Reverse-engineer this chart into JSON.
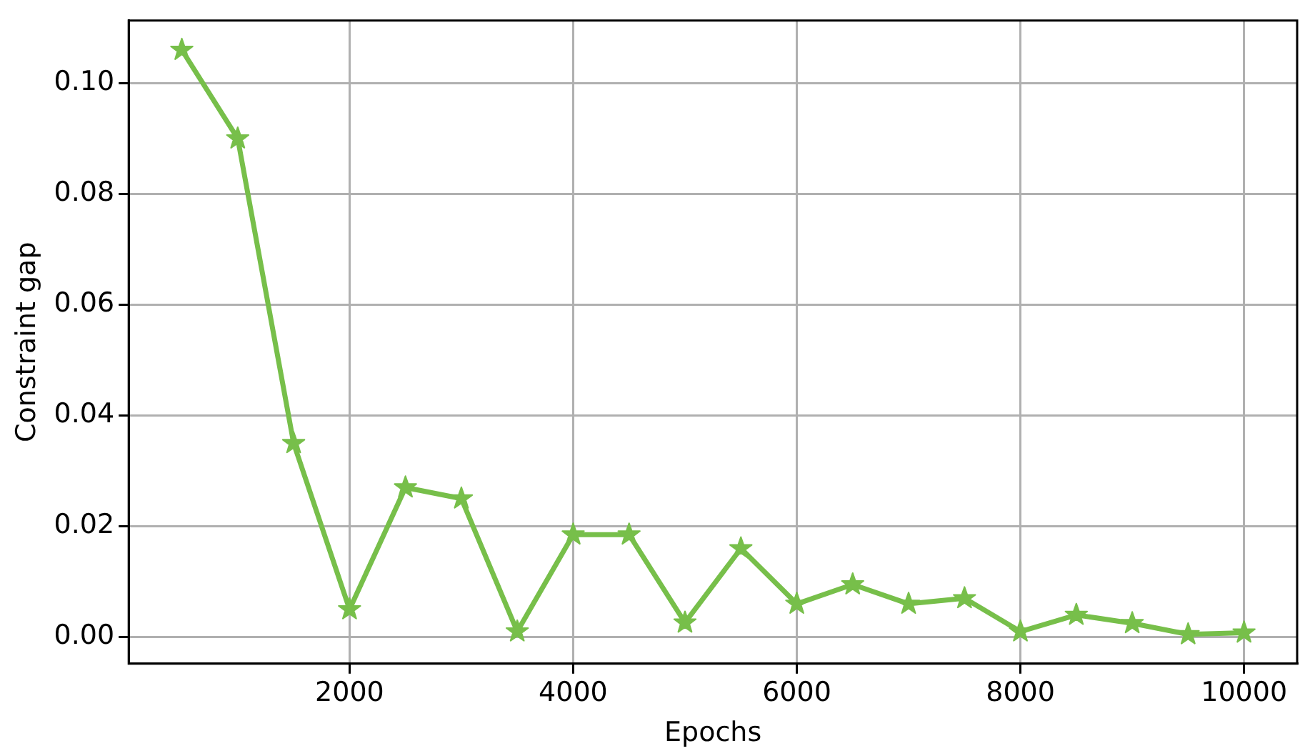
{
  "chart_data": {
    "type": "line",
    "xlabel": "Epochs",
    "ylabel": "Constraint gap",
    "x": [
      500,
      1000,
      1500,
      2000,
      2500,
      3000,
      3500,
      4000,
      4500,
      5000,
      5500,
      6000,
      6500,
      7000,
      7500,
      8000,
      8500,
      9000,
      9500,
      10000
    ],
    "series": [
      {
        "color": "#77bf4a",
        "values": [
          0.106,
          0.09,
          0.035,
          0.005,
          0.027,
          0.025,
          0.001,
          0.0185,
          0.0185,
          0.0026,
          0.016,
          0.006,
          0.0095,
          0.006,
          0.007,
          0.001,
          0.004,
          0.0025,
          0.0005,
          0.0008
        ]
      }
    ],
    "xlim": [
      25,
      10475
    ],
    "ylim": [
      -0.0048,
      0.1113
    ],
    "xticks": [
      2000,
      4000,
      6000,
      8000,
      10000
    ],
    "yticks": [
      {
        "value": 0,
        "label": "0.00"
      },
      {
        "value": 0.02,
        "label": "0.02"
      },
      {
        "value": 0.04,
        "label": "0.04"
      },
      {
        "value": 0.06,
        "label": "0.06"
      },
      {
        "value": 0.08,
        "label": "0.08"
      },
      {
        "value": 0.1,
        "label": "0.10"
      }
    ],
    "grid": true,
    "marker": "star",
    "line_style": "solid"
  }
}
